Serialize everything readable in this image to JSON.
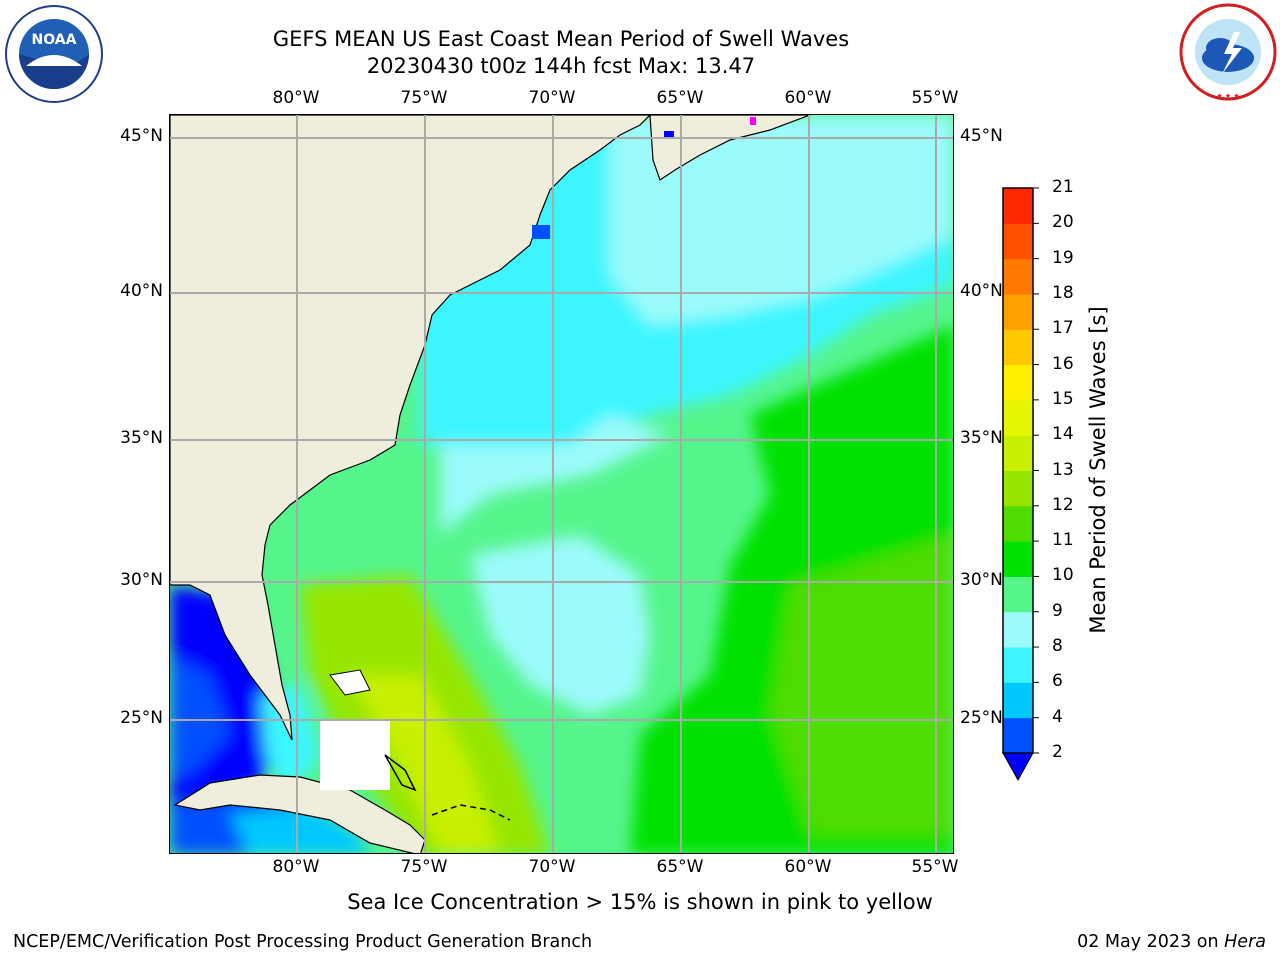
{
  "title": {
    "line1": "GEFS MEAN US East Coast Mean Period of Swell Waves",
    "line2": "20230430 t00z 144h fcst   Max: 13.47"
  },
  "longitude_labels": [
    "80°W",
    "75°W",
    "70°W",
    "65°W",
    "60°W",
    "55°W"
  ],
  "latitude_labels": [
    "45°N",
    "40°N",
    "35°N",
    "30°N",
    "25°N"
  ],
  "colorbar": {
    "title": "Mean Period of Swell Waves [s]",
    "ticks": [
      "2",
      "4",
      "6",
      "8",
      "9",
      "10",
      "11",
      "12",
      "13",
      "14",
      "15",
      "16",
      "17",
      "18",
      "19",
      "20",
      "21"
    ],
    "colors": [
      "#0050ff",
      "#00c8ff",
      "#3cf5ff",
      "#9bfbfb",
      "#55f58c",
      "#00e100",
      "#50dc00",
      "#96e600",
      "#c8f000",
      "#e6f500",
      "#fff000",
      "#ffc800",
      "#ffa000",
      "#ff7800",
      "#ff5000",
      "#ff2800",
      "#ff0000"
    ],
    "extend_color": "#0000ff"
  },
  "notice": "Sea Ice Concentration > 15% is shown in pink to yellow",
  "footer": {
    "left": "NCEP/EMC/Verification Post Processing Product Generation Branch",
    "right_date": "02 May 2023 on ",
    "right_machine": "Hera"
  },
  "logos": {
    "noaa": "NOAA",
    "nws": "NATIONAL WEATHER SERVICE"
  }
}
